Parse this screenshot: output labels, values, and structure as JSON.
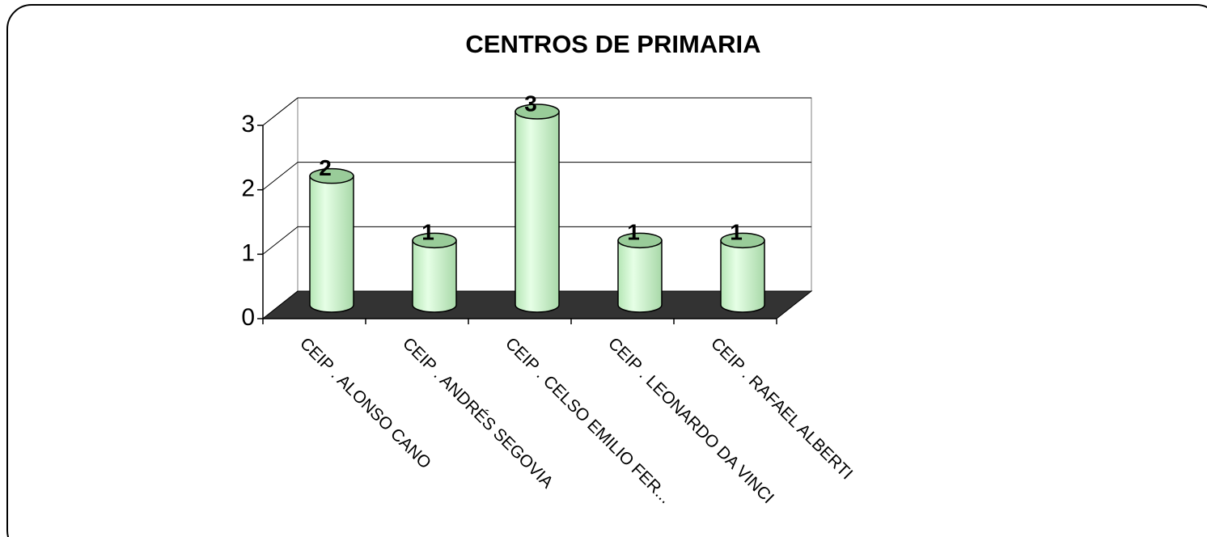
{
  "chart_data": {
    "type": "bar3d",
    "title": "CENTROS DE PRIMARIA",
    "categories": [
      "CEIP . ALONSO CANO",
      "CEIP . ANDRÉS SEGOVIA",
      "CEIP . CELSO EMILIO FER...",
      "CEIP . LEONARDO DA VINCI",
      "CEIP . RAFAEL ALBERTI"
    ],
    "values": [
      2,
      1,
      3,
      1,
      1
    ],
    "color": "#ccffcc",
    "ylim": [
      0,
      3
    ],
    "yticks": [
      0,
      1,
      2,
      3
    ],
    "grid": true
  }
}
